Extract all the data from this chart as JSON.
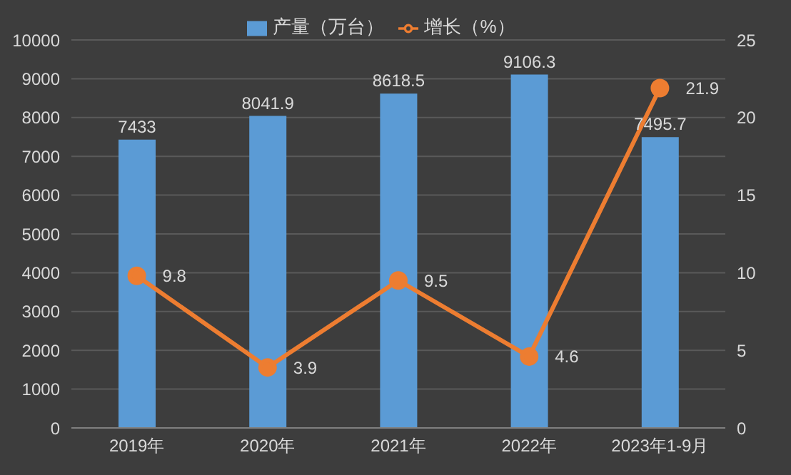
{
  "chart_data": {
    "type": "bar",
    "categories": [
      "2019年",
      "2020年",
      "2021年",
      "2022年",
      "2023年1-9月"
    ],
    "series": [
      {
        "name": "产量（万台）",
        "color": "#5b9bd5",
        "values": [
          7433,
          8041.9,
          8618.5,
          9106.3,
          7495.7
        ]
      },
      {
        "name": "增长（%）",
        "type": "line",
        "axis": "y2",
        "color": "#ed7d31",
        "values": [
          9.8,
          3.9,
          9.5,
          4.6,
          21.9
        ]
      }
    ],
    "ylim": [
      0,
      10000
    ],
    "yticks": [
      0,
      1000,
      2000,
      3000,
      4000,
      5000,
      6000,
      7000,
      8000,
      9000,
      10000
    ],
    "y2lim": [
      0,
      25
    ],
    "y2ticks": [
      0,
      5,
      10,
      15,
      20,
      25
    ],
    "data_labels": true,
    "legend": "top",
    "grid": "y",
    "marker": "circle",
    "line_style": "solid"
  }
}
